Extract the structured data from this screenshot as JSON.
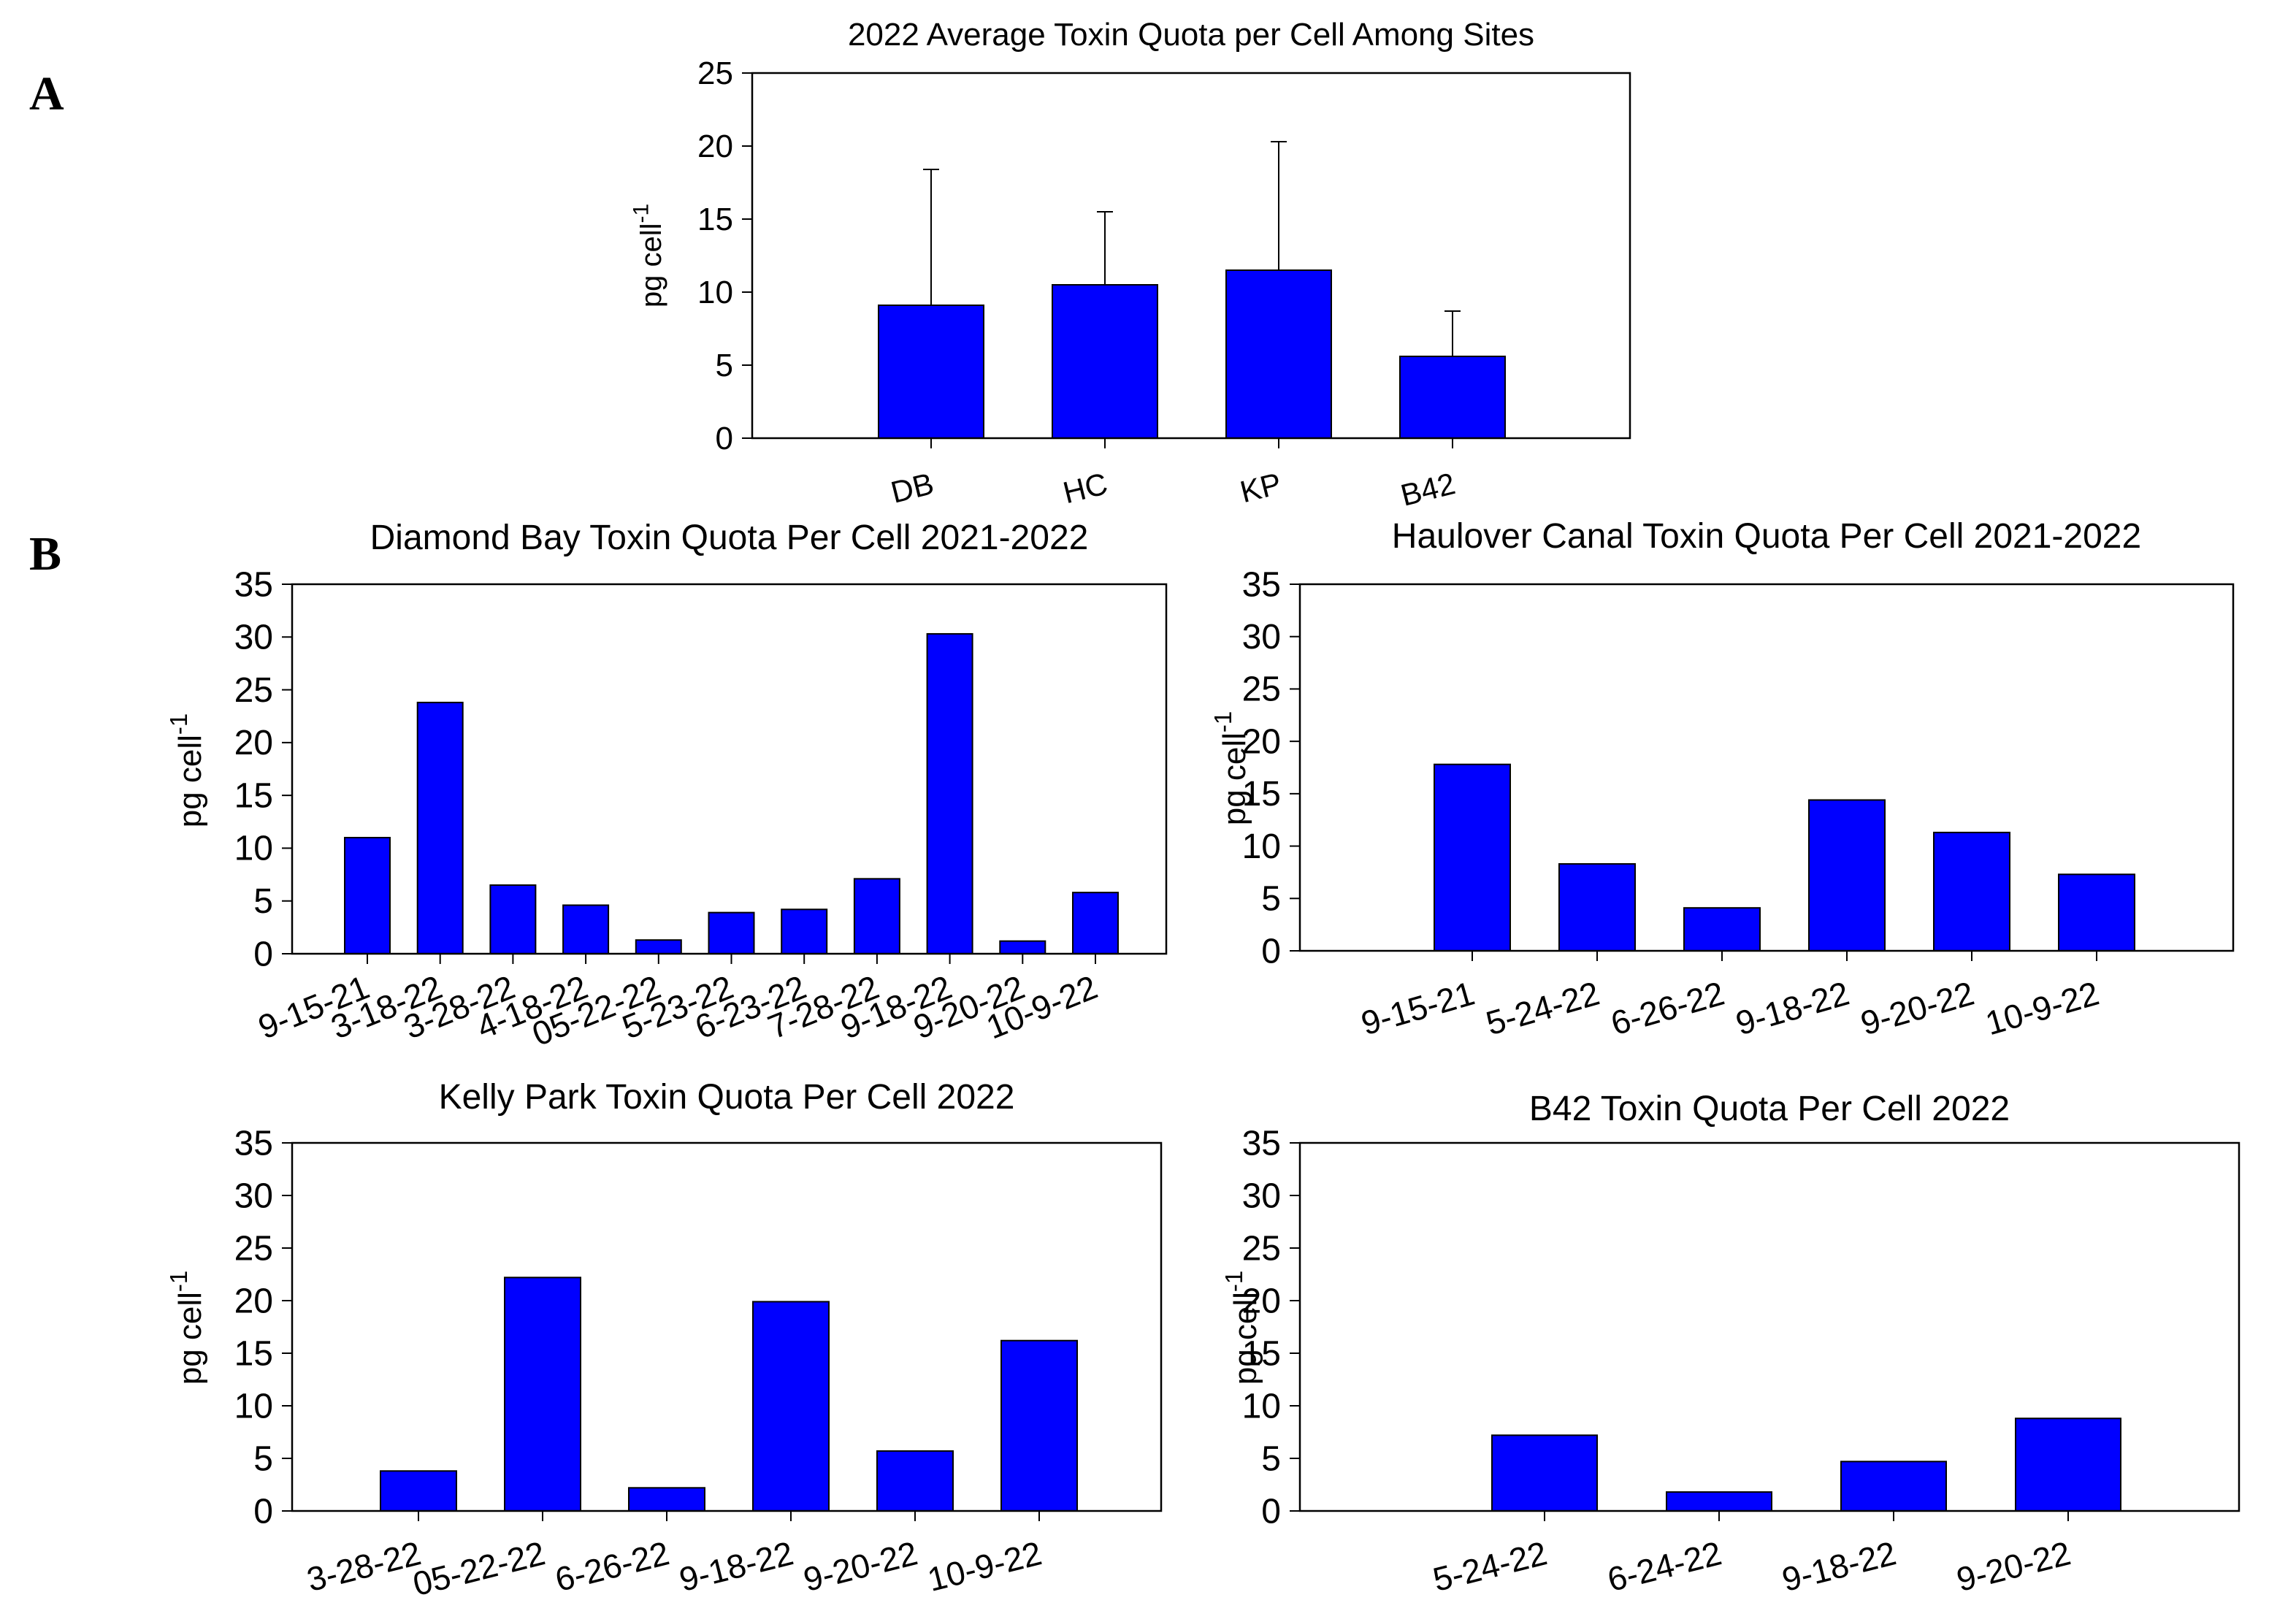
{
  "panel_labels": {
    "a": "A",
    "b": "B"
  },
  "bar_color": "#0000ff",
  "chart_data": [
    {
      "id": "A",
      "type": "bar",
      "title": "2022 Average Toxin Quota per Cell Among Sites",
      "ylabel": "pg cell",
      "ylabel_sup": "-1",
      "ylim": [
        0,
        25
      ],
      "yticks": [
        0,
        5,
        10,
        15,
        20,
        25
      ],
      "categories": [
        "DB",
        "HC",
        "KP",
        "B42"
      ],
      "values": [
        9.1,
        10.5,
        11.5,
        5.6
      ],
      "error_upper": [
        18.4,
        15.5,
        20.3,
        8.7
      ]
    },
    {
      "id": "B1",
      "type": "bar",
      "title": "Diamond Bay Toxin Quota Per Cell 2021-2022",
      "ylabel": "pg cell",
      "ylabel_sup": "-1",
      "ylim": [
        0,
        35
      ],
      "yticks": [
        0,
        5,
        10,
        15,
        20,
        25,
        30,
        35
      ],
      "categories": [
        "9-15-21",
        "3-18-22",
        "3-28-22",
        "4-18-22",
        "05-22-22",
        "5-23-22",
        "6-23-22",
        "7-28-22",
        "9-18-22",
        "9-20-22",
        "10-9-22"
      ],
      "values": [
        11.0,
        23.8,
        6.5,
        4.6,
        1.3,
        3.9,
        4.2,
        7.1,
        30.3,
        1.2,
        5.8
      ]
    },
    {
      "id": "B2",
      "type": "bar",
      "title": "Haulover Canal Toxin Quota Per Cell 2021-2022",
      "ylabel": "pg cell",
      "ylabel_sup": "-1",
      "ylim": [
        0,
        35
      ],
      "yticks": [
        0,
        5,
        10,
        15,
        20,
        25,
        30,
        35
      ],
      "categories": [
        "9-15-21",
        "5-24-22",
        "6-26-22",
        "9-18-22",
        "9-20-22",
        "10-9-22"
      ],
      "values": [
        17.8,
        8.3,
        4.1,
        14.4,
        11.3,
        7.3
      ]
    },
    {
      "id": "B3",
      "type": "bar",
      "title": "Kelly Park Toxin Quota Per Cell 2022",
      "ylabel": "pg cell",
      "ylabel_sup": "-1",
      "ylim": [
        0,
        35
      ],
      "yticks": [
        0,
        5,
        10,
        15,
        20,
        25,
        30,
        35
      ],
      "categories": [
        "3-28-22",
        "05-22-22",
        "6-26-22",
        "9-18-22",
        "9-20-22",
        "10-9-22"
      ],
      "values": [
        3.8,
        22.2,
        2.2,
        19.9,
        5.7,
        16.2
      ]
    },
    {
      "id": "B4",
      "type": "bar",
      "title": "B42 Toxin Quota Per Cell 2022",
      "ylabel": "pg cell",
      "ylabel_sup": "-1",
      "ylim": [
        0,
        35
      ],
      "yticks": [
        0,
        5,
        10,
        15,
        20,
        25,
        30,
        35
      ],
      "categories": [
        "5-24-22",
        "6-24-22",
        "9-18-22",
        "9-20-22"
      ],
      "values": [
        7.2,
        1.8,
        4.7,
        8.8
      ]
    }
  ]
}
